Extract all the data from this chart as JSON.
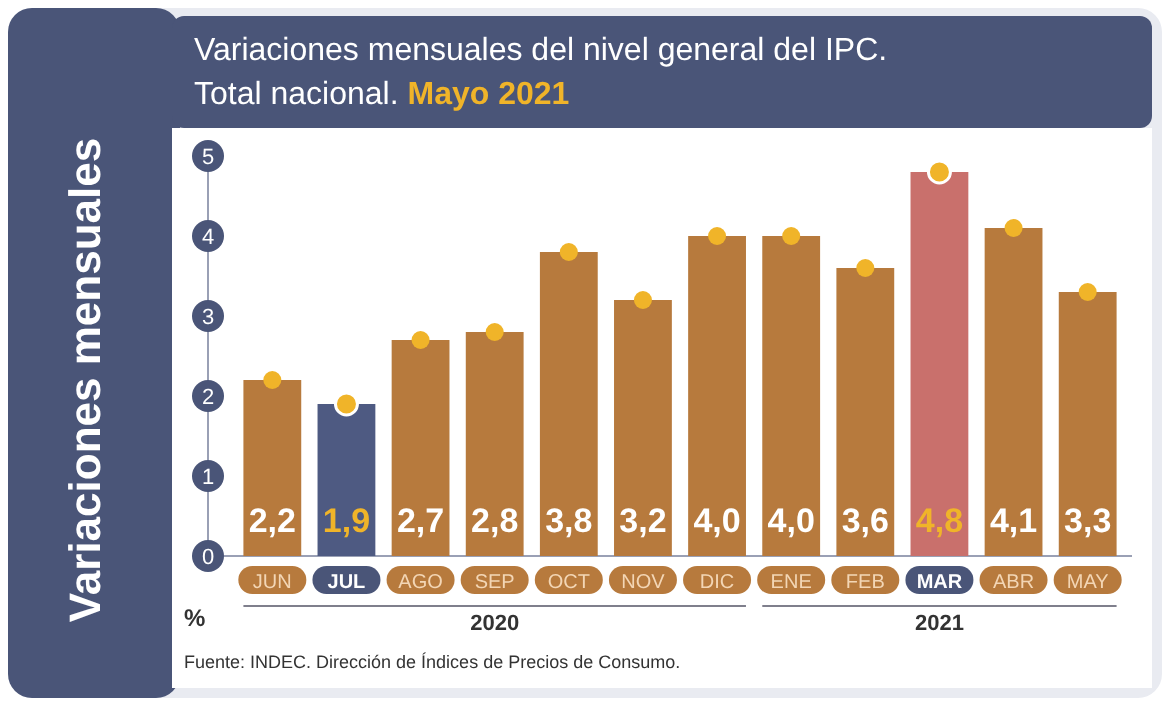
{
  "chart_data": {
    "type": "bar",
    "title": "Variaciones mensuales del nivel general del IPC. Total nacional.",
    "subtitle": "Mayo 2021",
    "ylabel": "Variaciones mensuales",
    "categories": [
      "JUN",
      "JUL",
      "AGO",
      "SEP",
      "OCT",
      "NOV",
      "DIC",
      "ENE",
      "FEB",
      "MAR",
      "ABR",
      "MAY"
    ],
    "series": [
      {
        "values": [
          2.2,
          1.9,
          2.7,
          2.8,
          3.8,
          3.2,
          4.0,
          4.0,
          3.6,
          4.8,
          4.1,
          3.3
        ],
        "value_labels": [
          "2,2",
          "1,9",
          "2,7",
          "2,8",
          "3,8",
          "3,2",
          "4,0",
          "4,0",
          "3,6",
          "4,8",
          "4,1",
          "3,3"
        ],
        "colors": [
          "#b77a3d",
          "#4e5a82",
          "#b77a3d",
          "#b77a3d",
          "#b77a3d",
          "#b77a3d",
          "#b77a3d",
          "#b77a3d",
          "#b77a3d",
          "#c9706c",
          "#b77a3d",
          "#b77a3d"
        ]
      },
      {
        "type": "scatter",
        "x": [
          "JUN",
          "JUL",
          "AGO",
          "SEP",
          "OCT",
          "NOV",
          "DIC",
          "ENE",
          "FEB",
          "MAR",
          "ABR",
          "MAY"
        ],
        "values": [
          2.2,
          1.9,
          2.7,
          2.8,
          3.8,
          3.2,
          4.0,
          4.0,
          3.6,
          4.8,
          4.1,
          3.3
        ],
        "color": "#f0b429",
        "marker": "circle"
      }
    ],
    "ylim": [
      0,
      5
    ],
    "yticks": [
      0,
      1,
      2,
      3,
      4,
      5
    ],
    "grid": false,
    "annotations": [
      "%",
      "2020",
      "2021",
      "Fuente: INDEC. Dirección de Índices de Precios de Consumo."
    ]
  }
}
